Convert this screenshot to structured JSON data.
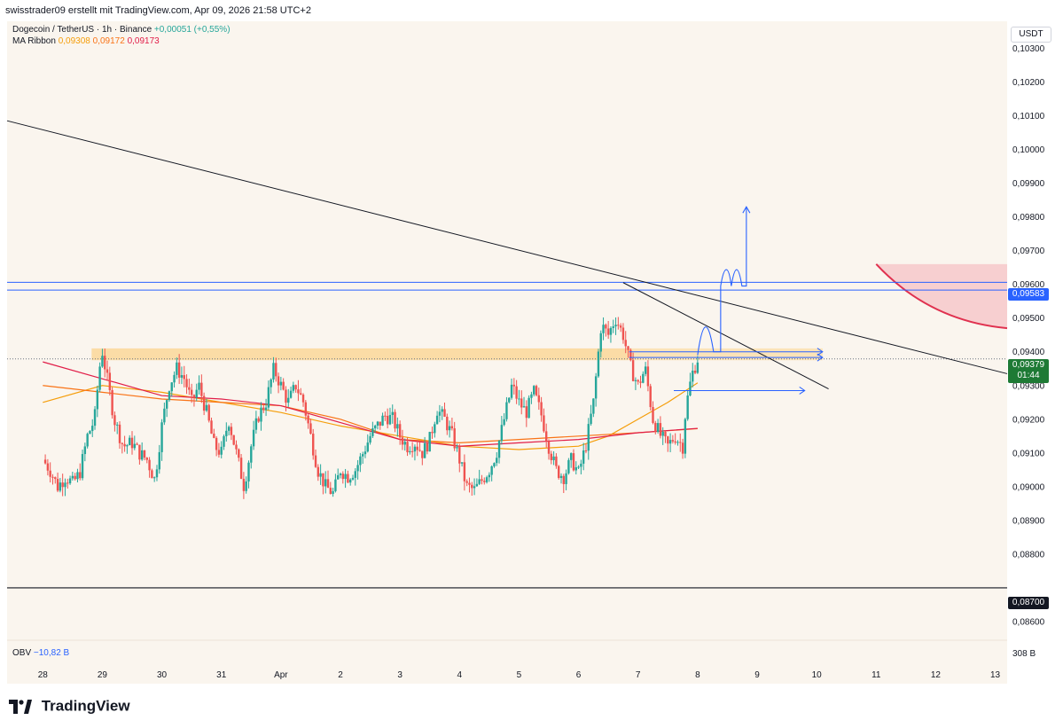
{
  "header": {
    "caption": "swisstrader09 erstellt mit TradingView.com, Apr 09, 2026 21:58 UTC+2"
  },
  "legend": {
    "symbol": "Dogecoin / TetherUS · 1h · Binance",
    "change": "+0,00051 (+0,55%)",
    "ma_label": "MA Ribbon",
    "ma_values": [
      "0,09308",
      "0,09172",
      "0,09173"
    ]
  },
  "axis": {
    "currency": "USDT"
  },
  "price_tag": {
    "value": "0,09379",
    "countdown": "01:44"
  },
  "level_tags": {
    "upper": "0,09583",
    "lower": "0,08700"
  },
  "obv": {
    "label": "OBV",
    "value": "−10,82 B",
    "right_value": "308 B"
  },
  "brand": {
    "name": "TradingView"
  },
  "colors": {
    "up": "#26a69a",
    "down": "#ef5350",
    "ma_fast": "#f59e0b",
    "ma_mid": "#f97316",
    "ma_slow": "#e11d48",
    "zone": "#fbd38d",
    "resistance": "#2962ff",
    "last_price": "#1e7a35"
  },
  "chart_data": {
    "type": "candlestick",
    "title": "Dogecoin / TetherUS · 1h · Binance",
    "ylabel": "USDT",
    "ylim": [
      0.0855,
      0.1038
    ],
    "y_ticks": [
      "0,10300",
      "0,10200",
      "0,10100",
      "0,10000",
      "0,09900",
      "0,09800",
      "0,09700",
      "0,09600",
      "0,09500",
      "0,09400",
      "0,09300",
      "0,09200",
      "0,09100",
      "0,09000",
      "0,08900",
      "0,08800",
      "0,08600"
    ],
    "x_ticks": [
      "28",
      "29",
      "30",
      "31",
      "Apr",
      "2",
      "3",
      "4",
      "5",
      "6",
      "7",
      "8",
      "9",
      "10",
      "11",
      "12",
      "13"
    ],
    "x_range_days": [
      -0.6,
      16.2
    ],
    "close_path": [
      [
        0.0,
        0.0908
      ],
      [
        0.12,
        0.0905
      ],
      [
        0.25,
        0.09
      ],
      [
        0.38,
        0.0903
      ],
      [
        0.5,
        0.0901
      ],
      [
        0.62,
        0.0904
      ],
      [
        0.75,
        0.0915
      ],
      [
        0.87,
        0.092
      ],
      [
        0.95,
        0.0935
      ],
      [
        1.0,
        0.094
      ],
      [
        1.08,
        0.0932
      ],
      [
        1.2,
        0.092
      ],
      [
        1.35,
        0.0912
      ],
      [
        1.5,
        0.0913
      ],
      [
        1.62,
        0.091
      ],
      [
        1.75,
        0.0908
      ],
      [
        1.88,
        0.0902
      ],
      [
        2.0,
        0.0918
      ],
      [
        2.12,
        0.093
      ],
      [
        2.25,
        0.0935
      ],
      [
        2.38,
        0.0932
      ],
      [
        2.5,
        0.0925
      ],
      [
        2.62,
        0.093
      ],
      [
        2.75,
        0.0922
      ],
      [
        2.88,
        0.0912
      ],
      [
        3.0,
        0.091
      ],
      [
        3.12,
        0.092
      ],
      [
        3.25,
        0.091
      ],
      [
        3.38,
        0.09
      ],
      [
        3.5,
        0.0912
      ],
      [
        3.62,
        0.0921
      ],
      [
        3.75,
        0.0925
      ],
      [
        3.88,
        0.0935
      ],
      [
        4.0,
        0.093
      ],
      [
        4.12,
        0.0925
      ],
      [
        4.25,
        0.093
      ],
      [
        4.38,
        0.0925
      ],
      [
        4.5,
        0.0915
      ],
      [
        4.62,
        0.0905
      ],
      [
        4.75,
        0.09
      ],
      [
        4.88,
        0.0898
      ],
      [
        5.0,
        0.0905
      ],
      [
        5.12,
        0.0903
      ],
      [
        5.25,
        0.0905
      ],
      [
        5.38,
        0.091
      ],
      [
        5.5,
        0.0915
      ],
      [
        5.62,
        0.0918
      ],
      [
        5.75,
        0.0921
      ],
      [
        5.88,
        0.092
      ],
      [
        6.0,
        0.0915
      ],
      [
        6.12,
        0.0912
      ],
      [
        6.25,
        0.0913
      ],
      [
        6.38,
        0.091
      ],
      [
        6.5,
        0.0914
      ],
      [
        6.62,
        0.0923
      ],
      [
        6.75,
        0.092
      ],
      [
        6.88,
        0.0915
      ],
      [
        7.0,
        0.0908
      ],
      [
        7.12,
        0.09
      ],
      [
        7.25,
        0.0899
      ],
      [
        7.38,
        0.0902
      ],
      [
        7.5,
        0.0905
      ],
      [
        7.62,
        0.091
      ],
      [
        7.75,
        0.092
      ],
      [
        7.88,
        0.093
      ],
      [
        8.0,
        0.0925
      ],
      [
        8.12,
        0.0922
      ],
      [
        8.25,
        0.0928
      ],
      [
        8.38,
        0.0921
      ],
      [
        8.5,
        0.0912
      ],
      [
        8.62,
        0.0905
      ],
      [
        8.75,
        0.0903
      ],
      [
        8.88,
        0.0908
      ],
      [
        9.0,
        0.0904
      ],
      [
        9.12,
        0.0912
      ],
      [
        9.25,
        0.0925
      ],
      [
        9.38,
        0.0948
      ],
      [
        9.5,
        0.0945
      ],
      [
        9.62,
        0.095
      ],
      [
        9.75,
        0.0945
      ],
      [
        9.88,
        0.0935
      ],
      [
        10.0,
        0.093
      ],
      [
        10.12,
        0.0935
      ],
      [
        10.25,
        0.092
      ],
      [
        10.38,
        0.0915
      ],
      [
        10.5,
        0.0912
      ],
      [
        10.62,
        0.0915
      ],
      [
        10.75,
        0.0912
      ],
      [
        10.8,
        0.0923
      ],
      [
        10.9,
        0.0933
      ],
      [
        11.0,
        0.09379
      ]
    ],
    "series": [
      {
        "name": "MA 0,09308",
        "values": [
          [
            0.0,
            0.0925
          ],
          [
            1.0,
            0.093
          ],
          [
            2.0,
            0.0928
          ],
          [
            3.0,
            0.0925
          ],
          [
            4.0,
            0.0922
          ],
          [
            5.0,
            0.0918
          ],
          [
            6.0,
            0.0915
          ],
          [
            7.0,
            0.0912
          ],
          [
            8.0,
            0.0911
          ],
          [
            9.0,
            0.0912
          ],
          [
            9.5,
            0.0915
          ],
          [
            10.0,
            0.092
          ],
          [
            10.5,
            0.0925
          ],
          [
            11.0,
            0.09308
          ]
        ]
      },
      {
        "name": "MA 0,09172",
        "values": [
          [
            0.0,
            0.093
          ],
          [
            1.0,
            0.0928
          ],
          [
            2.0,
            0.0926
          ],
          [
            3.0,
            0.0925
          ],
          [
            4.0,
            0.0924
          ],
          [
            5.0,
            0.092
          ],
          [
            6.0,
            0.0914
          ],
          [
            7.0,
            0.0913
          ],
          [
            8.0,
            0.0914
          ],
          [
            9.0,
            0.0915
          ],
          [
            10.0,
            0.0916
          ],
          [
            11.0,
            0.09172
          ]
        ]
      },
      {
        "name": "MA 0,09173",
        "values": [
          [
            0.0,
            0.0937
          ],
          [
            1.0,
            0.0932
          ],
          [
            2.0,
            0.0927
          ],
          [
            3.0,
            0.0926
          ],
          [
            4.0,
            0.0924
          ],
          [
            5.0,
            0.0919
          ],
          [
            6.0,
            0.0914
          ],
          [
            7.0,
            0.0912
          ],
          [
            8.0,
            0.0913
          ],
          [
            9.0,
            0.0914
          ],
          [
            10.0,
            0.0916
          ],
          [
            11.0,
            0.09173
          ]
        ]
      }
    ],
    "annotations": {
      "support_zone": [
        0.09375,
        0.0941
      ],
      "resistance_lines": [
        0.09583,
        0.09606
      ],
      "horizontal_level": 0.087,
      "last_price": 0.09379,
      "descending_trendline": [
        [
          -0.6,
          0.10085
        ],
        [
          16.2,
          0.09335
        ]
      ],
      "short_trendline": [
        [
          9.75,
          0.09605
        ],
        [
          13.2,
          0.0929
        ]
      ],
      "target_arrow_top": 0.0983,
      "red_zone": [
        0.0947,
        0.0966
      ],
      "projection_levels": [
        0.094,
        0.09383,
        0.09285
      ]
    }
  }
}
